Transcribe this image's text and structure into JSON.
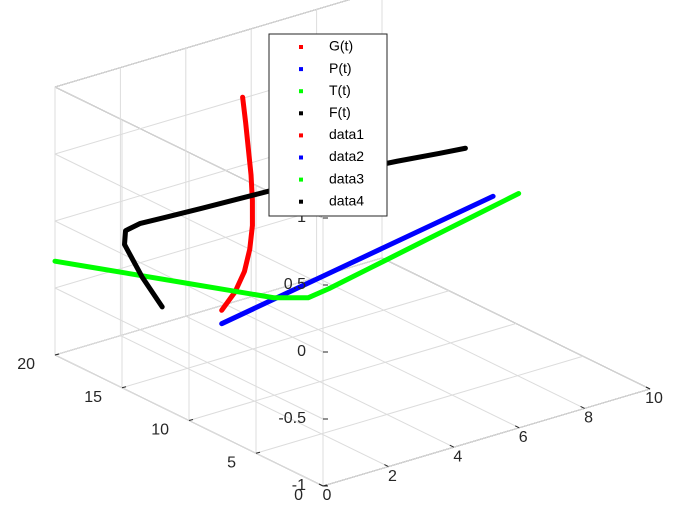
{
  "chart_data": {
    "type": "line",
    "projection": "3d",
    "grid": true,
    "legend_placement": "top-center",
    "xlim": [
      0,
      10
    ],
    "ylim": [
      0,
      20
    ],
    "zlim": [
      -1,
      1
    ],
    "x_ticks": [
      0,
      2,
      4,
      6,
      8,
      10
    ],
    "y_ticks": [
      0,
      5,
      10,
      15,
      20
    ],
    "z_ticks": [
      -1,
      -0.5,
      0,
      0.5,
      1
    ],
    "x_tick_labels": [
      "0",
      "2",
      "4",
      "6",
      "8",
      "10"
    ],
    "y_tick_labels": [
      "0",
      "5",
      "10",
      "15",
      "20"
    ],
    "z_tick_labels": [
      "-1",
      "-0.5",
      "0",
      "0.5",
      "1"
    ],
    "legend": [
      "G(t)",
      "P(t)",
      "T(t)",
      "F(t)",
      "data1",
      "data2",
      "data3",
      "data4"
    ],
    "legend_colors": [
      "#ff0000",
      "#0000ff",
      "#00ff00",
      "#000000",
      "#ff0000",
      "#0000ff",
      "#00ff00",
      "#000000"
    ],
    "series": [
      {
        "color": "#ff0000",
        "x": [
          1.0,
          1.45,
          1.9,
          2.35,
          2.8,
          3.25,
          3.7,
          4.15,
          4.6,
          5.0
        ],
        "y": [
          10,
          10.1,
          10.5,
          11.2,
          12.1,
          13.2,
          14.4,
          15.7,
          17.0,
          18.2
        ],
        "z": [
          -0.25,
          -0.15,
          -0.05,
          0.05,
          0.15,
          0.25,
          0.35,
          0.45,
          0.55,
          0.65
        ]
      },
      {
        "color": "#0000ff",
        "x": [
          1.0,
          9.3
        ],
        "y": [
          10,
          10
        ],
        "z": [
          -0.35,
          0.0
        ]
      },
      {
        "color": "#00ff00",
        "x": [
          0.0,
          0.6,
          1.2,
          1.8,
          2.4,
          3.0,
          3.6,
          4.2,
          4.8,
          5.4,
          6.0,
          6.6,
          7.2,
          7.8,
          8.4,
          9.0,
          9.6,
          10.0
        ],
        "y": [
          20,
          18.2,
          16.4,
          14.6,
          12.8,
          11.0,
          9.9,
          9.8,
          9.8,
          9.8,
          9.8,
          9.8,
          9.8,
          9.8,
          9.8,
          9.8,
          9.8,
          9.8
        ],
        "z": [
          -0.3,
          -0.31,
          -0.32,
          -0.33,
          -0.34,
          -0.35,
          -0.34,
          -0.31,
          -0.28,
          -0.25,
          -0.22,
          -0.19,
          -0.16,
          -0.13,
          -0.1,
          -0.07,
          -0.04,
          -0.02
        ]
      },
      {
        "color": "#000000",
        "x": [
          0.0,
          0.0,
          0.2,
          0.6,
          1.2,
          2.0,
          3.0,
          4.0,
          5.0,
          6.0,
          7.0,
          8.0,
          9.0,
          9.6
        ],
        "y": [
          12.0,
          13.5,
          15.3,
          16.2,
          16.6,
          16.6,
          16.3,
          15.9,
          15.5,
          15.1,
          14.6,
          14.0,
          13.3,
          12.8
        ],
        "z": [
          -0.25,
          -0.1,
          0.04,
          0.07,
          0.06,
          0.05,
          0.06,
          0.08,
          0.1,
          0.12,
          0.14,
          0.16,
          0.18,
          0.2
        ]
      }
    ]
  }
}
